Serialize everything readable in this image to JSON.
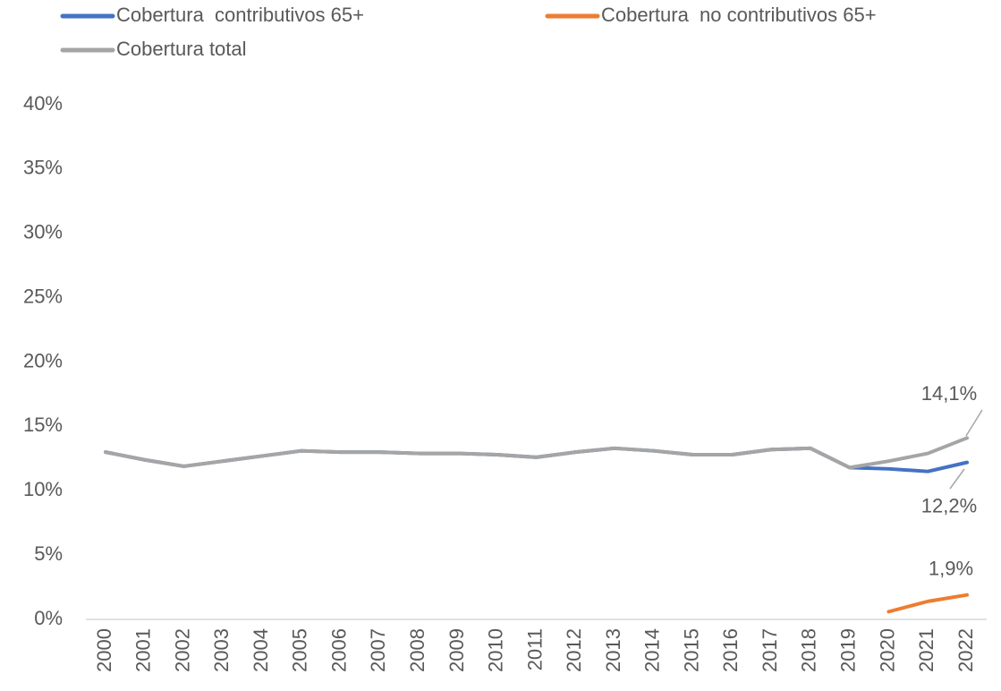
{
  "chart_data": {
    "type": "line",
    "categories": [
      "2000",
      "2001",
      "2002",
      "2003",
      "2004",
      "2005",
      "2006",
      "2007",
      "2008",
      "2009",
      "2010",
      "2011",
      "2012",
      "2013",
      "2014",
      "2015",
      "2016",
      "2017",
      "2018",
      "2019",
      "2020",
      "2021",
      "2022"
    ],
    "series": [
      {
        "name": "Cobertura  contributivos 65+",
        "color": "#4472c4",
        "values": [
          13.0,
          12.4,
          11.9,
          12.3,
          12.7,
          13.1,
          13.0,
          13.0,
          12.9,
          12.9,
          12.8,
          12.6,
          13.0,
          13.3,
          13.1,
          12.8,
          12.8,
          13.2,
          13.3,
          11.8,
          11.7,
          11.5,
          12.2
        ],
        "value_labels": [
          null,
          null,
          null,
          null,
          null,
          null,
          null,
          null,
          null,
          null,
          null,
          null,
          null,
          null,
          null,
          null,
          null,
          null,
          null,
          null,
          null,
          null,
          "12,2%"
        ]
      },
      {
        "name": "Cobertura  no contributivos 65+",
        "color": "#ed7d31",
        "values": [
          null,
          null,
          null,
          null,
          null,
          null,
          null,
          null,
          null,
          null,
          null,
          null,
          null,
          null,
          null,
          null,
          null,
          null,
          null,
          null,
          0.6,
          1.4,
          1.9
        ],
        "value_labels": [
          null,
          null,
          null,
          null,
          null,
          null,
          null,
          null,
          null,
          null,
          null,
          null,
          null,
          null,
          null,
          null,
          null,
          null,
          null,
          null,
          null,
          null,
          "1,9%"
        ]
      },
      {
        "name": "Cobertura total",
        "color": "#a5a5a5",
        "values": [
          13.0,
          12.4,
          11.9,
          12.3,
          12.7,
          13.1,
          13.0,
          13.0,
          12.9,
          12.9,
          12.8,
          12.6,
          13.0,
          13.3,
          13.1,
          12.8,
          12.8,
          13.2,
          13.3,
          11.8,
          12.3,
          12.9,
          14.1
        ],
        "value_labels": [
          null,
          null,
          null,
          null,
          null,
          null,
          null,
          null,
          null,
          null,
          null,
          null,
          null,
          null,
          null,
          null,
          null,
          null,
          null,
          null,
          null,
          null,
          "14,1%"
        ]
      }
    ],
    "ylim": [
      0,
      40
    ],
    "yticks": [
      {
        "value": 0,
        "label": "0%"
      },
      {
        "value": 5,
        "label": "5%"
      },
      {
        "value": 10,
        "label": "10%"
      },
      {
        "value": 15,
        "label": "15%"
      },
      {
        "value": 20,
        "label": "20%"
      },
      {
        "value": 25,
        "label": "25%"
      },
      {
        "value": 30,
        "label": "30%"
      },
      {
        "value": 35,
        "label": "35%"
      },
      {
        "value": 40,
        "label": "40%"
      }
    ],
    "grid": false,
    "legend": "top"
  }
}
